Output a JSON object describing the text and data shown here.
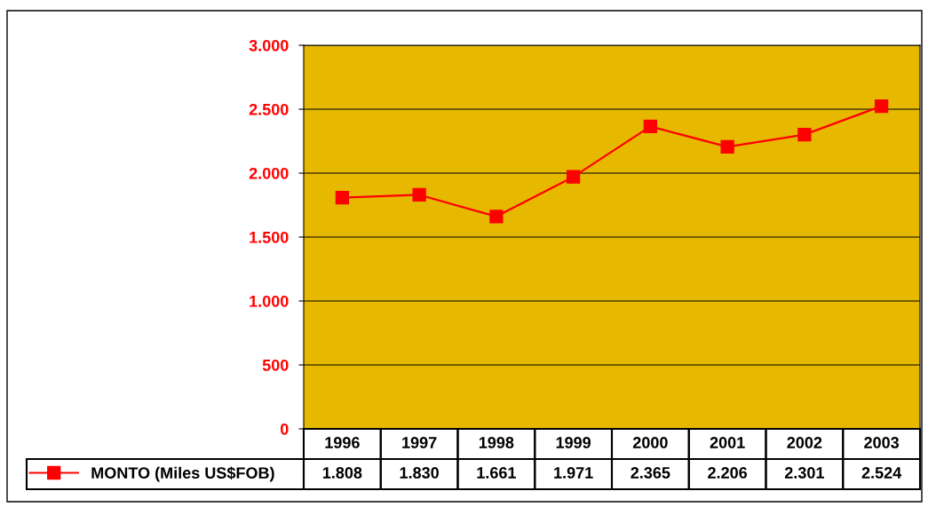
{
  "chart_data": {
    "type": "line",
    "categories": [
      "1996",
      "1997",
      "1998",
      "1999",
      "2000",
      "2001",
      "2002",
      "2003"
    ],
    "series": [
      {
        "name": "MONTO (Miles US$FOB)",
        "color": "#ff0000",
        "values": [
          1808,
          1830,
          1661,
          1971,
          2365,
          2206,
          2301,
          2524
        ],
        "value_labels": [
          "1.808",
          "1.830",
          "1.661",
          "1.971",
          "2.365",
          "2.206",
          "2.301",
          "2.524"
        ]
      }
    ],
    "ylim": [
      0,
      3000
    ],
    "yticks": [
      {
        "value": 0,
        "label": "0"
      },
      {
        "value": 500,
        "label": "500"
      },
      {
        "value": 1000,
        "label": "1.000"
      },
      {
        "value": 1500,
        "label": "1.500"
      },
      {
        "value": 2000,
        "label": "2.000"
      },
      {
        "value": 2500,
        "label": "2.500"
      },
      {
        "value": 3000,
        "label": "3.000"
      }
    ],
    "grid": "y",
    "legend": "bottom",
    "marker": "square",
    "line_style": "solid"
  }
}
